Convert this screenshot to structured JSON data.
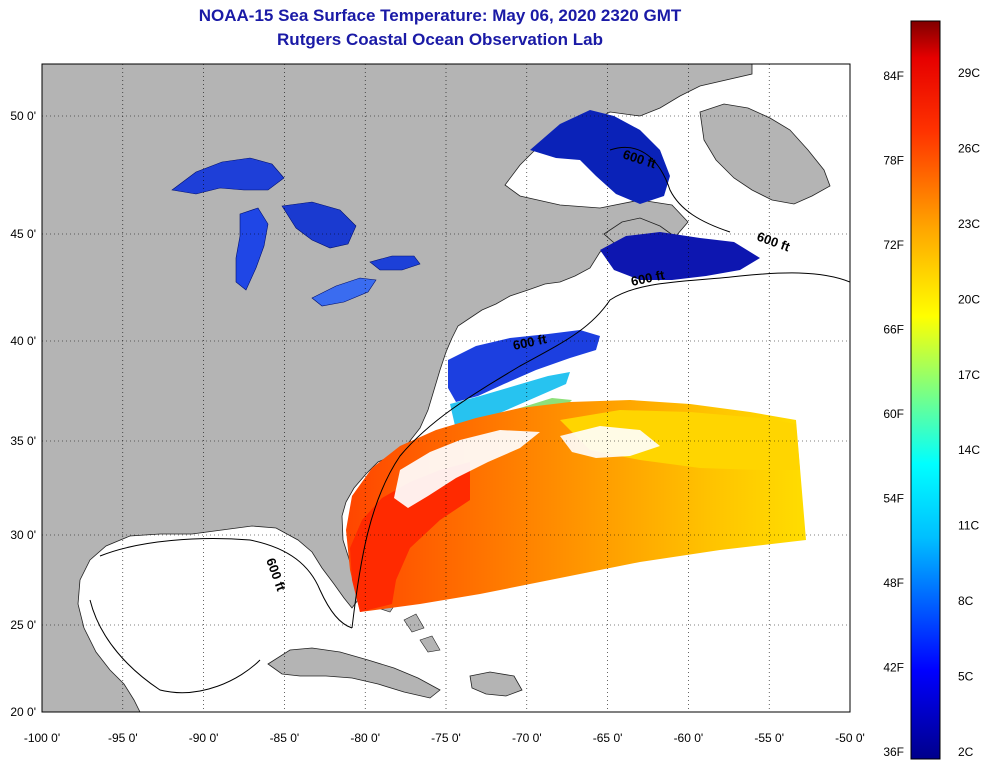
{
  "header": {
    "title": "NOAA-15 Sea Surface Temperature:  May 06, 2020 2320 GMT",
    "subtitle": "Rutgers Coastal Ocean Observation Lab"
  },
  "map": {
    "lon_range": [
      -100,
      -50
    ],
    "lat_range": [
      20,
      52
    ],
    "lon_ticks": [
      {
        "value": -100,
        "label": "-100 0'"
      },
      {
        "value": -95,
        "label": "-95 0'"
      },
      {
        "value": -90,
        "label": "-90 0'"
      },
      {
        "value": -85,
        "label": "-85 0'"
      },
      {
        "value": -80,
        "label": "-80 0'"
      },
      {
        "value": -75,
        "label": "-75 0'"
      },
      {
        "value": -70,
        "label": "-70 0'"
      },
      {
        "value": -65,
        "label": "-65 0'"
      },
      {
        "value": -60,
        "label": "-60 0'"
      },
      {
        "value": -55,
        "label": "-55 0'"
      },
      {
        "value": -50,
        "label": "-50 0'"
      }
    ],
    "lat_ticks": [
      {
        "value": 20,
        "label": "20 0'"
      },
      {
        "value": 25,
        "label": "25 0'"
      },
      {
        "value": 30,
        "label": "30 0'"
      },
      {
        "value": 35,
        "label": "35 0'"
      },
      {
        "value": 40,
        "label": "40 0'"
      },
      {
        "value": 45,
        "label": "45 0'"
      },
      {
        "value": 50,
        "label": "50 0'"
      }
    ],
    "contour_labels": [
      "600 ft",
      "600 ft",
      "600 ft",
      "600 ft",
      "600 ft"
    ],
    "colors": {
      "land": "#b4b4b4",
      "ocean_no_data": "#ffffff",
      "grid": "#000000"
    }
  },
  "colorbar": {
    "fahrenheit_labels": [
      "84F",
      "78F",
      "72F",
      "66F",
      "60F",
      "54F",
      "48F",
      "42F",
      "36F"
    ],
    "celsius_labels": [
      "29C",
      "26C",
      "23C",
      "20C",
      "17C",
      "14C",
      "11C",
      "8C",
      "5C",
      "2C"
    ],
    "gradient_colors": [
      "#00008b",
      "#0000ff",
      "#00bfff",
      "#00ffff",
      "#7fff7f",
      "#ffff00",
      "#ffa500",
      "#ff3300",
      "#e60000",
      "#800000"
    ]
  }
}
